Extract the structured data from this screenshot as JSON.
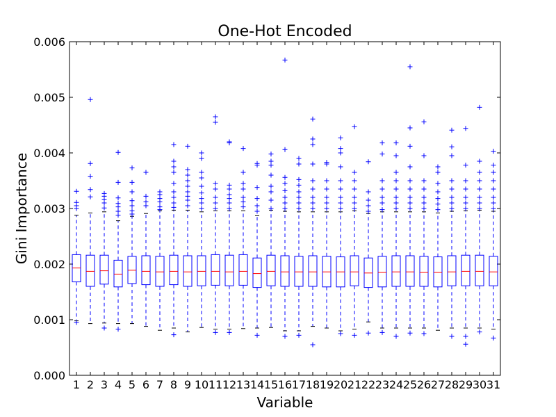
{
  "chart_data": {
    "type": "box",
    "title": "One-Hot Encoded",
    "xlabel": "Variable",
    "ylabel": "Gini Importance",
    "ylim": [
      0,
      0.006
    ],
    "yticks": [
      "0.000",
      "0.001",
      "0.002",
      "0.003",
      "0.004",
      "0.005",
      "0.006"
    ],
    "categories": [
      "1",
      "2",
      "3",
      "4",
      "5",
      "6",
      "7",
      "8",
      "9",
      "10",
      "11",
      "12",
      "13",
      "14",
      "15",
      "16",
      "17",
      "18",
      "19",
      "20",
      "21",
      "22",
      "23",
      "24",
      "25",
      "26",
      "27",
      "28",
      "29",
      "30",
      "31"
    ],
    "boxes": [
      {
        "q1": 0.00168,
        "median": 0.00193,
        "q3": 0.00217,
        "whislo": 0.00098,
        "whishi": 0.00288,
        "fliers": [
          0.00095,
          0.003,
          0.00305,
          0.00311,
          0.00331
        ]
      },
      {
        "q1": 0.0016,
        "median": 0.00187,
        "q3": 0.00216,
        "whislo": 0.00093,
        "whishi": 0.00292,
        "fliers": [
          0.00321,
          0.00334,
          0.00358,
          0.00381,
          0.00496
        ]
      },
      {
        "q1": 0.00164,
        "median": 0.00188,
        "q3": 0.00216,
        "whislo": 0.00094,
        "whishi": 0.00294,
        "fliers": [
          0.00085,
          0.00301,
          0.0031,
          0.00316,
          0.00322,
          0.00327
        ]
      },
      {
        "q1": 0.00159,
        "median": 0.00182,
        "q3": 0.00207,
        "whislo": 0.00093,
        "whishi": 0.00278,
        "fliers": [
          0.00083,
          0.00288,
          0.00295,
          0.00303,
          0.00309,
          0.00319,
          0.00347,
          0.00401
        ]
      },
      {
        "q1": 0.00165,
        "median": 0.00189,
        "q3": 0.00214,
        "whislo": 0.00093,
        "whishi": 0.00286,
        "fliers": [
          0.0029,
          0.00296,
          0.00305,
          0.00314,
          0.0033,
          0.00347,
          0.00373
        ]
      },
      {
        "q1": 0.00163,
        "median": 0.00187,
        "q3": 0.00215,
        "whislo": 0.00088,
        "whishi": 0.00291,
        "fliers": [
          0.00305,
          0.00312,
          0.00322,
          0.00365
        ]
      },
      {
        "q1": 0.0016,
        "median": 0.00186,
        "q3": 0.00214,
        "whislo": 0.00081,
        "whishi": 0.00296,
        "fliers": [
          0.00298,
          0.00303,
          0.00312,
          0.00318,
          0.00325,
          0.0033
        ]
      },
      {
        "q1": 0.00163,
        "median": 0.00187,
        "q3": 0.00216,
        "whislo": 0.00085,
        "whishi": 0.00297,
        "fliers": [
          0.00073,
          0.00302,
          0.0031,
          0.0032,
          0.0033,
          0.00345,
          0.00365,
          0.00375,
          0.00385,
          0.00415
        ]
      },
      {
        "q1": 0.0016,
        "median": 0.00186,
        "q3": 0.00215,
        "whislo": 0.00078,
        "whishi": 0.00297,
        "fliers": [
          0.00305,
          0.00315,
          0.00322,
          0.0033,
          0.0034,
          0.0035,
          0.0036,
          0.0037,
          0.00412
        ]
      },
      {
        "q1": 0.00161,
        "median": 0.00187,
        "q3": 0.00215,
        "whislo": 0.00086,
        "whishi": 0.00294,
        "fliers": [
          0.003,
          0.0031,
          0.00318,
          0.00328,
          0.0034,
          0.00355,
          0.00365,
          0.0039,
          0.004
        ]
      },
      {
        "q1": 0.00162,
        "median": 0.00187,
        "q3": 0.00217,
        "whislo": 0.00083,
        "whishi": 0.00296,
        "fliers": [
          0.00077,
          0.003,
          0.0031,
          0.0032,
          0.00335,
          0.00345,
          0.00455,
          0.00465
        ]
      },
      {
        "q1": 0.00161,
        "median": 0.00186,
        "q3": 0.00216,
        "whislo": 0.00083,
        "whishi": 0.00296,
        "fliers": [
          0.00077,
          0.003,
          0.0031,
          0.00318,
          0.00325,
          0.00335,
          0.00342,
          0.00418,
          0.0042
        ]
      },
      {
        "q1": 0.00162,
        "median": 0.00187,
        "q3": 0.00217,
        "whislo": 0.00084,
        "whishi": 0.00296,
        "fliers": [
          0.00303,
          0.00312,
          0.0032,
          0.00335,
          0.00345,
          0.00365,
          0.00408
        ]
      },
      {
        "q1": 0.00158,
        "median": 0.00183,
        "q3": 0.00211,
        "whislo": 0.00085,
        "whishi": 0.00287,
        "fliers": [
          0.00072,
          0.00295,
          0.00305,
          0.00318,
          0.00338,
          0.00378,
          0.00381
        ]
      },
      {
        "q1": 0.00161,
        "median": 0.00187,
        "q3": 0.00216,
        "whislo": 0.00086,
        "whishi": 0.00297,
        "fliers": [
          0.003,
          0.00315,
          0.0033,
          0.0034,
          0.0036,
          0.00378,
          0.00385,
          0.00398
        ]
      },
      {
        "q1": 0.0016,
        "median": 0.00186,
        "q3": 0.00215,
        "whislo": 0.0008,
        "whishi": 0.00295,
        "fliers": [
          0.0007,
          0.003,
          0.0031,
          0.0032,
          0.00332,
          0.00345,
          0.00356,
          0.00406,
          0.00567
        ]
      },
      {
        "q1": 0.0016,
        "median": 0.00186,
        "q3": 0.00214,
        "whislo": 0.0008,
        "whishi": 0.00294,
        "fliers": [
          0.00072,
          0.003,
          0.0031,
          0.0032,
          0.0033,
          0.00342,
          0.00352,
          0.0038,
          0.0039
        ]
      },
      {
        "q1": 0.0016,
        "median": 0.00186,
        "q3": 0.00215,
        "whislo": 0.00088,
        "whishi": 0.00294,
        "fliers": [
          0.00055,
          0.003,
          0.0031,
          0.0032,
          0.00335,
          0.0035,
          0.0038,
          0.00415,
          0.00425,
          0.00461
        ]
      },
      {
        "q1": 0.00159,
        "median": 0.00186,
        "q3": 0.00214,
        "whislo": 0.00085,
        "whishi": 0.00294,
        "fliers": [
          0.003,
          0.0031,
          0.0032,
          0.00335,
          0.0035,
          0.0038,
          0.00383
        ]
      },
      {
        "q1": 0.00159,
        "median": 0.00186,
        "q3": 0.00213,
        "whislo": 0.0008,
        "whishi": 0.00294,
        "fliers": [
          0.00075,
          0.003,
          0.0031,
          0.0032,
          0.00335,
          0.0035,
          0.00375,
          0.004,
          0.00408,
          0.00427
        ]
      },
      {
        "q1": 0.00161,
        "median": 0.00186,
        "q3": 0.00215,
        "whislo": 0.00083,
        "whishi": 0.00296,
        "fliers": [
          0.00072,
          0.003,
          0.0031,
          0.0032,
          0.00335,
          0.0035,
          0.00365,
          0.00447
        ]
      },
      {
        "q1": 0.00158,
        "median": 0.00184,
        "q3": 0.00211,
        "whislo": 0.00096,
        "whishi": 0.00291,
        "fliers": [
          0.00076,
          0.00295,
          0.00305,
          0.00315,
          0.0033,
          0.00384
        ]
      },
      {
        "q1": 0.00159,
        "median": 0.00185,
        "q3": 0.00214,
        "whislo": 0.00085,
        "whishi": 0.00294,
        "fliers": [
          0.00077,
          0.00298,
          0.0031,
          0.0032,
          0.00335,
          0.0035,
          0.00398,
          0.00418
        ]
      },
      {
        "q1": 0.0016,
        "median": 0.00186,
        "q3": 0.00215,
        "whislo": 0.00085,
        "whishi": 0.00294,
        "fliers": [
          0.0007,
          0.003,
          0.0031,
          0.0032,
          0.00335,
          0.0035,
          0.00365,
          0.00395,
          0.00418
        ]
      },
      {
        "q1": 0.0016,
        "median": 0.00186,
        "q3": 0.00215,
        "whislo": 0.00085,
        "whishi": 0.00294,
        "fliers": [
          0.00076,
          0.003,
          0.0031,
          0.0032,
          0.00335,
          0.0035,
          0.00375,
          0.00412,
          0.00445,
          0.00555
        ]
      },
      {
        "q1": 0.0016,
        "median": 0.00185,
        "q3": 0.00214,
        "whislo": 0.00085,
        "whishi": 0.00294,
        "fliers": [
          0.00075,
          0.003,
          0.0031,
          0.0032,
          0.00335,
          0.0035,
          0.00395,
          0.00456
        ]
      },
      {
        "q1": 0.00159,
        "median": 0.00185,
        "q3": 0.00213,
        "whislo": 0.00081,
        "whishi": 0.00292,
        "fliers": [
          0.00298,
          0.00308,
          0.00318,
          0.0033,
          0.00345,
          0.00365,
          0.00375
        ]
      },
      {
        "q1": 0.00161,
        "median": 0.00186,
        "q3": 0.00215,
        "whislo": 0.00085,
        "whishi": 0.00295,
        "fliers": [
          0.0007,
          0.003,
          0.0031,
          0.0032,
          0.00335,
          0.0035,
          0.00395,
          0.00411,
          0.00441
        ]
      },
      {
        "q1": 0.00161,
        "median": 0.00187,
        "q3": 0.00216,
        "whislo": 0.00085,
        "whishi": 0.00296,
        "fliers": [
          0.00056,
          0.0007,
          0.003,
          0.0031,
          0.0032,
          0.00335,
          0.0035,
          0.00378,
          0.00444
        ]
      },
      {
        "q1": 0.00161,
        "median": 0.00187,
        "q3": 0.00216,
        "whislo": 0.00085,
        "whishi": 0.00297,
        "fliers": [
          0.00078,
          0.003,
          0.0031,
          0.0032,
          0.00335,
          0.0035,
          0.00365,
          0.00385,
          0.00482
        ]
      },
      {
        "q1": 0.00161,
        "median": 0.00186,
        "q3": 0.00214,
        "whislo": 0.00083,
        "whishi": 0.00295,
        "fliers": [
          0.00067,
          0.003,
          0.0031,
          0.0032,
          0.00335,
          0.0035,
          0.00365,
          0.00378,
          0.00403
        ]
      }
    ],
    "colors": {
      "box": "#0000ff",
      "median": "#ff0000",
      "flier": "#0000ff",
      "cap": "#000000"
    },
    "grid": false,
    "legend": "none"
  }
}
